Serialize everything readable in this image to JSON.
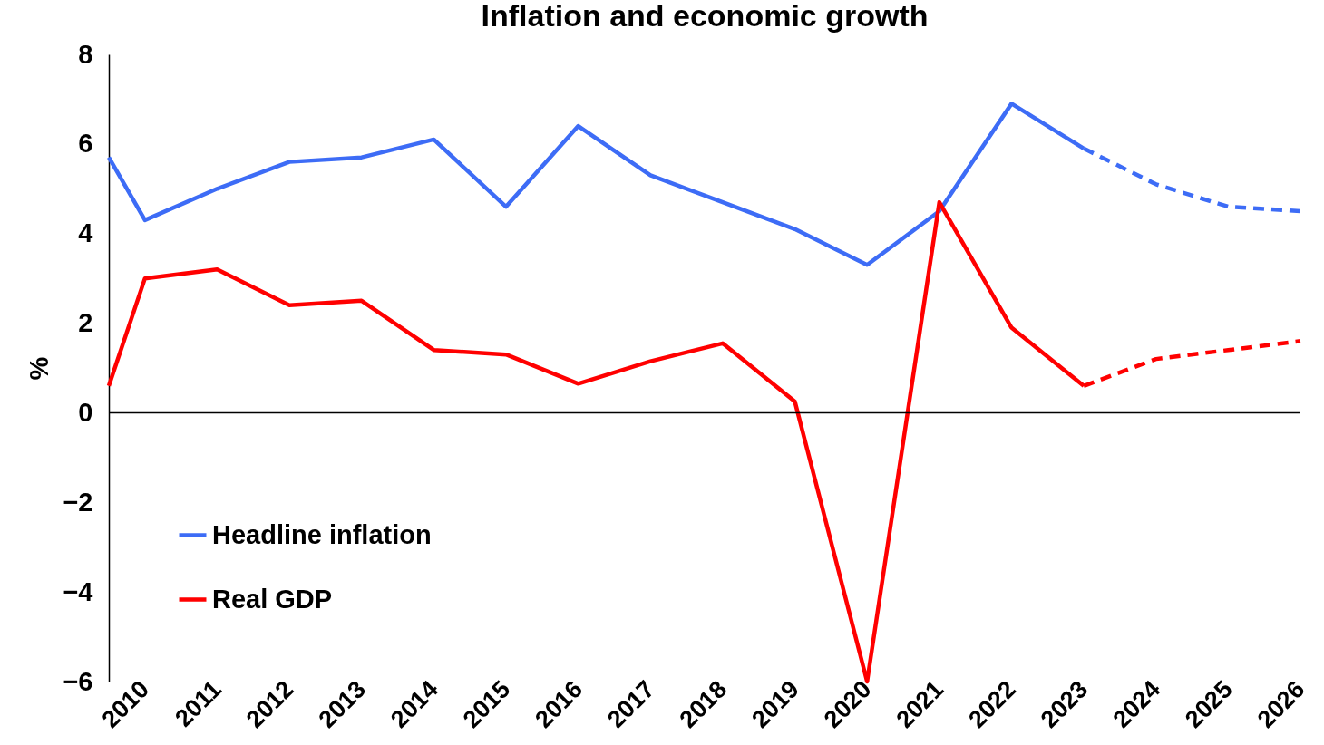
{
  "chart_data": {
    "type": "line",
    "title": "Inflation and economic growth",
    "ylabel": "%",
    "xlim": [
      2009.5,
      2026
    ],
    "xticks": [
      2010,
      2011,
      2012,
      2013,
      2014,
      2015,
      2016,
      2017,
      2018,
      2019,
      2020,
      2021,
      2022,
      2023,
      2024,
      2025,
      2026
    ],
    "ylim": [
      -6,
      8
    ],
    "yticks": [
      -6,
      -4,
      -2,
      0,
      2,
      4,
      6,
      8
    ],
    "legend": "bottom left",
    "line_style": "solid",
    "ref_lines": [
      {
        "axis": "y",
        "value": 0,
        "color": "#000000"
      }
    ],
    "series": [
      {
        "name": "Headline inflation",
        "color": "#3d6cf6",
        "x": [
          2009.5,
          2010,
          2011,
          2012,
          2013,
          2014,
          2015,
          2016,
          2017,
          2018,
          2019,
          2020,
          2021,
          2022,
          2023
        ],
        "values": [
          5.7,
          4.3,
          5.0,
          5.6,
          5.7,
          6.1,
          4.6,
          6.4,
          5.3,
          4.7,
          4.1,
          3.3,
          4.5,
          6.9,
          5.9
        ]
      },
      {
        "name": "Real GDP",
        "color": "#ff0000",
        "x": [
          2009.5,
          2010,
          2011,
          2012,
          2013,
          2014,
          2015,
          2016,
          2017,
          2018,
          2019,
          2020,
          2021,
          2022,
          2023
        ],
        "values": [
          0.6,
          3.0,
          3.2,
          2.4,
          2.5,
          1.4,
          1.3,
          0.65,
          1.15,
          1.55,
          0.25,
          -6.0,
          4.7,
          1.9,
          0.6
        ]
      },
      {
        "color": "#3d6cf6",
        "line_style": "dashed",
        "x": [
          2023,
          2024,
          2025,
          2026
        ],
        "values": [
          5.9,
          5.1,
          4.6,
          4.5
        ]
      },
      {
        "color": "#ff0000",
        "line_style": "dashed",
        "x": [
          2023,
          2024,
          2025,
          2026
        ],
        "values": [
          0.6,
          1.2,
          1.4,
          1.6
        ]
      }
    ]
  }
}
